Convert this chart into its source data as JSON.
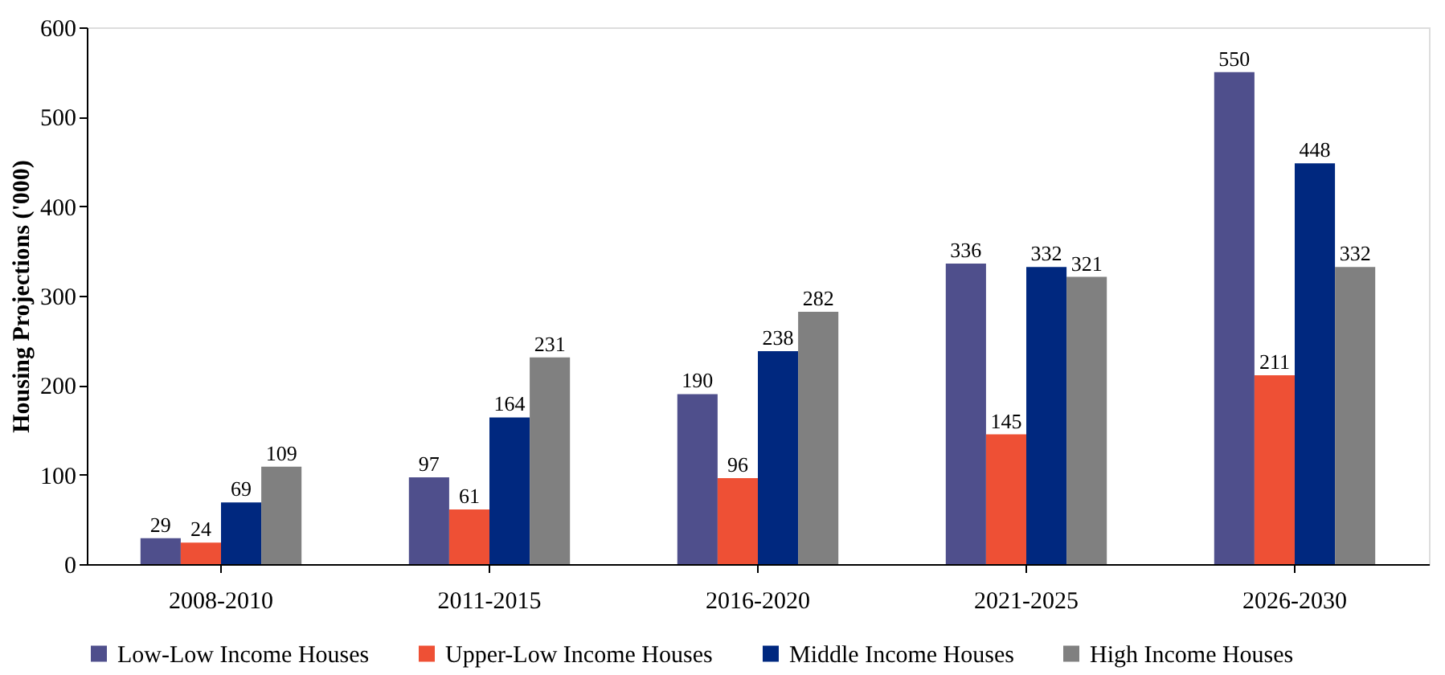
{
  "chart_data": {
    "type": "bar",
    "ylabel": "Housing Projections ('000)",
    "categories": [
      "2008-2010",
      "2011-2015",
      "2016-2020",
      "2021-2025",
      "2026-2030"
    ],
    "series": [
      {
        "name": "Low-Low Income Houses",
        "color": "#4f4f8c",
        "values": [
          29,
          97,
          190,
          336,
          550
        ]
      },
      {
        "name": "Upper-Low Income Houses",
        "color": "#ee5035",
        "values": [
          24,
          61,
          96,
          145,
          211
        ]
      },
      {
        "name": "Middle Income Houses",
        "color": "#00287f",
        "values": [
          69,
          164,
          238,
          332,
          448
        ]
      },
      {
        "name": "High Income Houses",
        "color": "#808080",
        "values": [
          109,
          231,
          282,
          321,
          332
        ]
      }
    ],
    "ylim": [
      0,
      600
    ],
    "yticks": [
      0,
      100,
      200,
      300,
      400,
      500,
      600
    ],
    "data_labels": true,
    "grid": false,
    "legend": "bottom"
  }
}
